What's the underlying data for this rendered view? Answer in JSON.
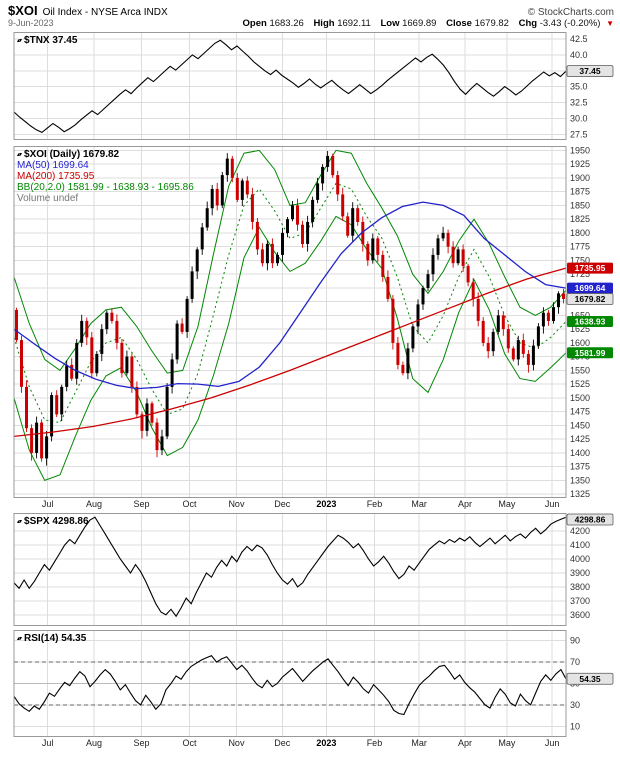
{
  "header": {
    "symbol": "$XOI",
    "title": "Oil Index - NYSE Arca INDX",
    "brand": "© StockCharts.com",
    "date": "9-Jun-2023",
    "quote": {
      "open_label": "Open",
      "open": "1683.26",
      "high_label": "High",
      "high": "1692.11",
      "low_label": "Low",
      "low": "1669.89",
      "close_label": "Close",
      "close": "1679.82",
      "chg_label": "Chg",
      "chg": "-3.43 (-0.20%)",
      "chg_arrow": "▼"
    }
  },
  "colors": {
    "up": "#000000",
    "down": "#cc0000",
    "ma50": "#2222cc",
    "ma200": "#cc0000",
    "bollinger": "#008800",
    "grid": "#dedede",
    "border": "#999999",
    "axis_text": "#333333",
    "flag_red": "#cc0000",
    "flag_blue": "#2222cc",
    "flag_green": "#008800",
    "flag_gray": "#e4e4e4"
  },
  "x_ticks": [
    {
      "label": "Jul",
      "f": 0.061
    },
    {
      "label": "Aug",
      "f": 0.145
    },
    {
      "label": "Sep",
      "f": 0.231
    },
    {
      "label": "Oct",
      "f": 0.318
    },
    {
      "label": "Nov",
      "f": 0.403
    },
    {
      "label": "Dec",
      "f": 0.486
    },
    {
      "label": "2023",
      "f": 0.566,
      "year": true
    },
    {
      "label": "Feb",
      "f": 0.653
    },
    {
      "label": "Mar",
      "f": 0.734
    },
    {
      "label": "Apr",
      "f": 0.817
    },
    {
      "label": "May",
      "f": 0.893
    },
    {
      "label": "Jun",
      "f": 0.975
    }
  ],
  "chart_data": [
    {
      "id": "tnx",
      "type": "line",
      "title": "$TNX",
      "last": "37.45",
      "y_min": 26.6,
      "y_max": 43.6,
      "y_ticks": [
        "27.5",
        "30.0",
        "32.5",
        "35.0",
        "37.5",
        "40.0",
        "42.5"
      ],
      "flag": {
        "label": "37.45",
        "style": "gray",
        "value": 37.45
      },
      "values": [
        31.0,
        30.2,
        29.5,
        28.8,
        28.2,
        27.8,
        28.5,
        29.2,
        28.6,
        27.9,
        28.4,
        29.0,
        29.8,
        30.5,
        31.2,
        30.6,
        31.4,
        32.2,
        33.0,
        33.8,
        34.5,
        33.9,
        34.8,
        35.6,
        36.4,
        35.8,
        36.6,
        37.4,
        38.2,
        37.6,
        38.4,
        39.2,
        40.0,
        39.4,
        40.2,
        41.0,
        41.8,
        42.3,
        41.6,
        40.8,
        41.4,
        40.6,
        39.8,
        38.9,
        38.2,
        37.5,
        36.9,
        37.6,
        36.8,
        36.2,
        35.6,
        34.9,
        35.5,
        36.2,
        35.4,
        34.8,
        35.4,
        36.0,
        35.2,
        34.5,
        33.9,
        34.6,
        35.3,
        34.6,
        33.9,
        34.5,
        35.2,
        36.0,
        36.7,
        37.4,
        38.1,
        38.8,
        39.5,
        38.9,
        39.6,
        40.1,
        39.3,
        38.4,
        37.2,
        35.8,
        34.6,
        33.8,
        34.7,
        35.5,
        34.8,
        34.1,
        33.5,
        34.2,
        35.0,
        34.4,
        33.7,
        34.3,
        35.1,
        35.9,
        36.6,
        37.3,
        36.7,
        37.2,
        36.6,
        37.45
      ]
    },
    {
      "id": "xoi",
      "type": "candlestick",
      "title": "$XOI (Daily)",
      "last": "1679.82",
      "legend": [
        {
          "text": "MA(50) 1699.64",
          "color": "blue"
        },
        {
          "text": "MA(200) 1735.95",
          "color": "red"
        },
        {
          "text": "BB(20,2.0) 1581.99 - 1638.93 - 1695.86",
          "color": "green"
        },
        {
          "text": "Volume undef",
          "color": "gray"
        }
      ],
      "y_min": 1318,
      "y_max": 1958,
      "y_ticks": [
        "1325",
        "1350",
        "1375",
        "1400",
        "1425",
        "1450",
        "1475",
        "1500",
        "1525",
        "1550",
        "1575",
        "1600",
        "1625",
        "1650",
        "1675",
        "1700",
        "1725",
        "1750",
        "1775",
        "1800",
        "1825",
        "1850",
        "1875",
        "1900",
        "1925",
        "1950"
      ],
      "flags": [
        {
          "label": "1735.95",
          "value": 1735.95,
          "style": "red"
        },
        {
          "label": "1699.64",
          "value": 1699.64,
          "style": "blue"
        },
        {
          "label": "1679.82",
          "value": 1679.82,
          "style": "gray"
        },
        {
          "label": "1638.93",
          "value": 1638.93,
          "style": "green"
        },
        {
          "label": "1581.99",
          "value": 1581.99,
          "style": "green"
        }
      ],
      "closes": [
        1605,
        1520,
        1445,
        1400,
        1455,
        1390,
        1430,
        1505,
        1470,
        1520,
        1560,
        1535,
        1600,
        1640,
        1610,
        1545,
        1580,
        1625,
        1655,
        1640,
        1600,
        1545,
        1575,
        1520,
        1470,
        1440,
        1490,
        1455,
        1405,
        1430,
        1520,
        1570,
        1635,
        1620,
        1680,
        1730,
        1770,
        1810,
        1845,
        1880,
        1850,
        1905,
        1935,
        1900,
        1860,
        1895,
        1870,
        1820,
        1770,
        1745,
        1780,
        1745,
        1760,
        1800,
        1825,
        1850,
        1815,
        1780,
        1820,
        1860,
        1890,
        1920,
        1940,
        1905,
        1870,
        1830,
        1795,
        1845,
        1820,
        1780,
        1750,
        1790,
        1760,
        1720,
        1680,
        1600,
        1560,
        1545,
        1590,
        1630,
        1670,
        1700,
        1725,
        1760,
        1790,
        1800,
        1775,
        1745,
        1770,
        1740,
        1710,
        1680,
        1640,
        1600,
        1585,
        1620,
        1650,
        1625,
        1590,
        1570,
        1605,
        1580,
        1560,
        1595,
        1630,
        1655,
        1640,
        1665,
        1690,
        1679.82
      ],
      "ma50": [
        1625,
        1598,
        1572,
        1550,
        1534,
        1523,
        1517,
        1519,
        1526,
        1525,
        1521,
        1530,
        1556,
        1600,
        1655,
        1710,
        1762,
        1800,
        1828,
        1848,
        1856,
        1850,
        1832,
        1790,
        1760,
        1730,
        1706,
        1699.64
      ],
      "ma200": [
        1430,
        1438,
        1448,
        1462,
        1480,
        1500,
        1524,
        1550,
        1578,
        1606,
        1634,
        1662,
        1690,
        1716,
        1735.95
      ],
      "bb_upper": [
        1720,
        1635,
        1570,
        1550,
        1590,
        1635,
        1660,
        1665,
        1630,
        1585,
        1545,
        1550,
        1630,
        1760,
        1885,
        1945,
        1950,
        1915,
        1850,
        1855,
        1905,
        1950,
        1945,
        1890,
        1845,
        1795,
        1725,
        1690,
        1730,
        1785,
        1825,
        1780,
        1720,
        1665,
        1650,
        1665,
        1695.86
      ],
      "bb_mid": [
        1610,
        1520,
        1460,
        1455,
        1510,
        1565,
        1600,
        1610,
        1570,
        1515,
        1470,
        1480,
        1545,
        1650,
        1760,
        1850,
        1880,
        1840,
        1790,
        1800,
        1845,
        1890,
        1880,
        1830,
        1790,
        1720,
        1630,
        1600,
        1650,
        1720,
        1770,
        1720,
        1650,
        1600,
        1590,
        1610,
        1638.93
      ],
      "bb_lower": [
        1500,
        1405,
        1350,
        1360,
        1430,
        1495,
        1540,
        1555,
        1510,
        1445,
        1395,
        1410,
        1460,
        1540,
        1635,
        1755,
        1810,
        1765,
        1730,
        1745,
        1785,
        1830,
        1815,
        1770,
        1735,
        1645,
        1535,
        1510,
        1570,
        1655,
        1715,
        1660,
        1580,
        1535,
        1530,
        1555,
        1581.99
      ]
    },
    {
      "id": "spx",
      "type": "line",
      "title": "$SPX",
      "last": "4298.86",
      "y_min": 3520,
      "y_max": 4330,
      "y_ticks": [
        "3600",
        "3700",
        "3800",
        "3900",
        "4000",
        "4100",
        "4200"
      ],
      "flag": {
        "label": "4298.86",
        "style": "gray",
        "value": 4298.86
      },
      "values": [
        3830,
        3790,
        3850,
        3790,
        3840,
        3900,
        3960,
        3920,
        3980,
        4040,
        4100,
        4140,
        4110,
        4170,
        4230,
        4280,
        4300,
        4240,
        4180,
        4120,
        4060,
        4000,
        3950,
        3900,
        3960,
        3910,
        3840,
        3760,
        3680,
        3620,
        3600,
        3640,
        3590,
        3650,
        3720,
        3680,
        3760,
        3830,
        3900,
        3870,
        3940,
        3990,
        3950,
        4020,
        3980,
        4050,
        4090,
        4060,
        4100,
        4080,
        4030,
        3960,
        3900,
        3850,
        3820,
        3860,
        3800,
        3830,
        3890,
        3940,
        3990,
        4040,
        4090,
        4130,
        4170,
        4150,
        4120,
        4080,
        4110,
        4060,
        4000,
        3950,
        3980,
        4020,
        3970,
        3910,
        3860,
        3890,
        3950,
        3920,
        3970,
        4020,
        4070,
        4100,
        4130,
        4110,
        4140,
        4120,
        4150,
        4130,
        4160,
        4120,
        4090,
        4120,
        4150,
        4110,
        4140,
        4170,
        4130,
        4160,
        4180,
        4150,
        4190,
        4220,
        4180,
        4210,
        4250,
        4270,
        4285,
        4298.86
      ]
    },
    {
      "id": "rsi",
      "type": "line",
      "title": "RSI(14)",
      "last": "54.35",
      "y_min": 0,
      "y_max": 100,
      "y_ticks": [
        "90",
        "70",
        "50",
        "30",
        "10"
      ],
      "h_lines": [
        {
          "v": 70,
          "style": "dashed"
        },
        {
          "v": 50,
          "style": "solid"
        },
        {
          "v": 30,
          "style": "dashed"
        }
      ],
      "flag": {
        "label": "54.35",
        "style": "gray",
        "value": 54.35
      },
      "values": [
        38,
        31,
        27,
        24,
        29,
        26,
        33,
        41,
        38,
        45,
        51,
        48,
        55,
        61,
        57,
        47,
        52,
        58,
        63,
        59,
        52,
        44,
        49,
        41,
        34,
        30,
        39,
        33,
        26,
        31,
        44,
        50,
        57,
        54,
        61,
        66,
        69,
        72,
        74,
        76,
        70,
        73,
        75,
        69,
        63,
        67,
        62,
        55,
        49,
        46,
        53,
        47,
        50,
        56,
        60,
        64,
        58,
        52,
        57,
        62,
        66,
        70,
        73,
        67,
        61,
        54,
        48,
        56,
        51,
        45,
        41,
        49,
        44,
        39,
        33,
        25,
        22,
        21,
        31,
        40,
        48,
        53,
        57,
        62,
        66,
        67,
        61,
        54,
        58,
        51,
        46,
        42,
        36,
        30,
        27,
        37,
        45,
        40,
        32,
        29,
        40,
        34,
        30,
        41,
        52,
        58,
        53,
        59,
        63,
        54.35
      ]
    }
  ]
}
